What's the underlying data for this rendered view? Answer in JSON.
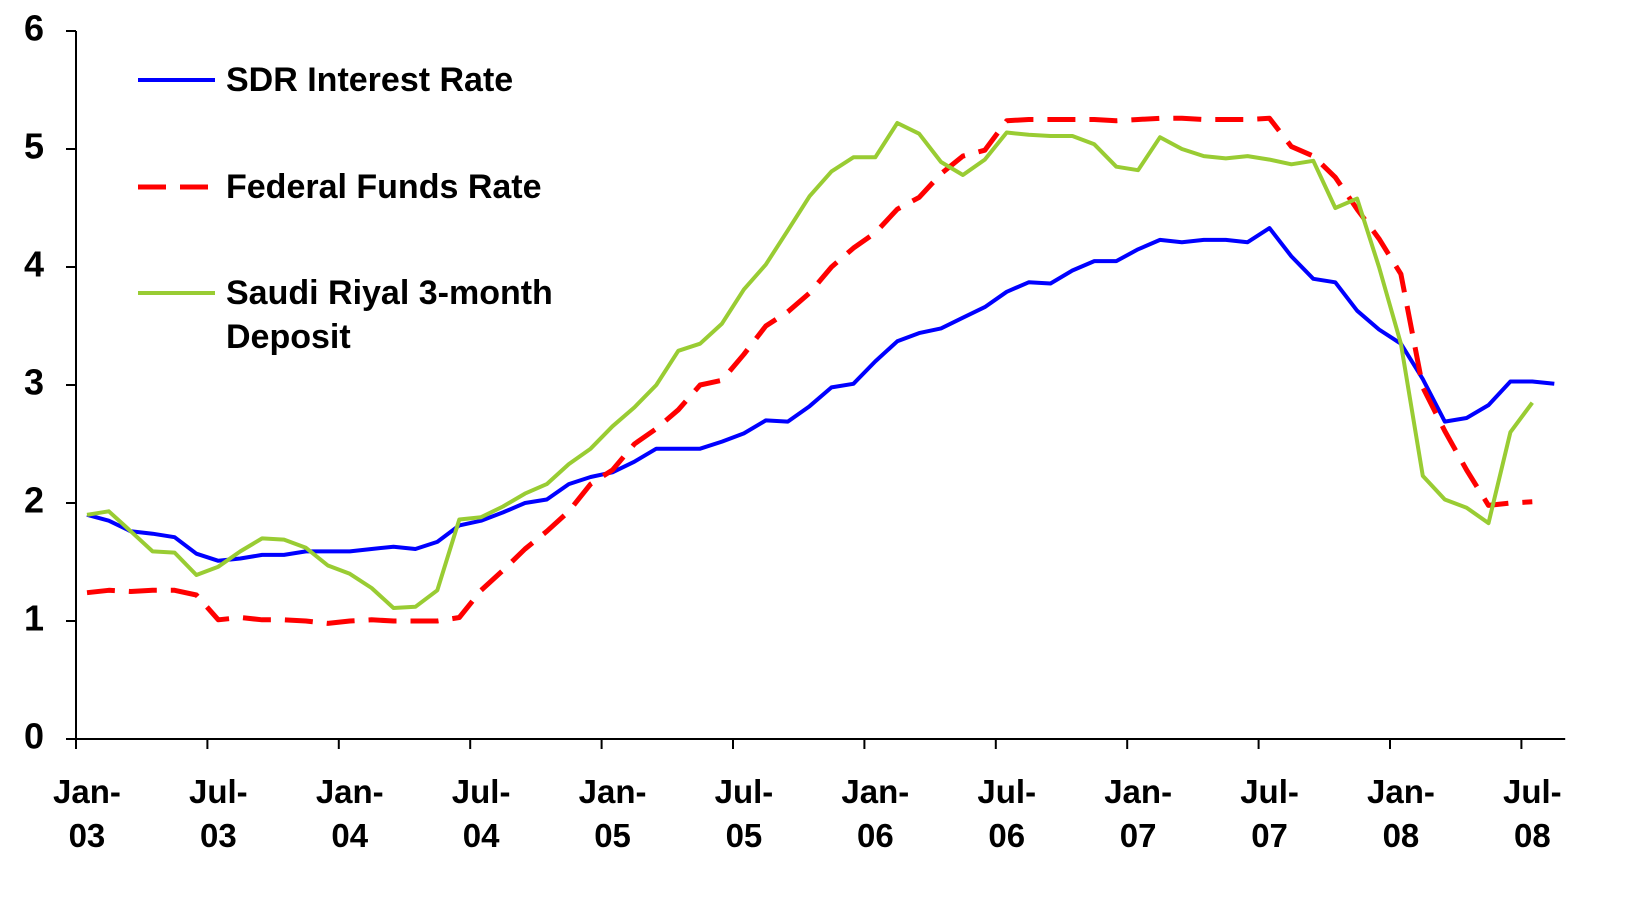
{
  "chart_data": {
    "type": "line",
    "categories": [
      "Jan-03",
      null,
      null,
      null,
      null,
      null,
      "Jul-03",
      null,
      null,
      null,
      null,
      null,
      "Jan-04",
      null,
      null,
      null,
      null,
      null,
      "Jul-04",
      null,
      null,
      null,
      null,
      null,
      "Jan-05",
      null,
      null,
      null,
      null,
      null,
      "Jul-05",
      null,
      null,
      null,
      null,
      null,
      "Jan-06",
      null,
      null,
      null,
      null,
      null,
      "Jul-06",
      null,
      null,
      null,
      null,
      null,
      "Jan-07",
      null,
      null,
      null,
      null,
      null,
      "Jul-07",
      null,
      null,
      null,
      null,
      null,
      "Jan-08",
      null,
      null,
      null,
      null,
      null,
      "Jul-08",
      null
    ],
    "series": [
      {
        "name": "SDR Interest Rate",
        "color": "#0000ff",
        "values": [
          1.9,
          1.85,
          1.76,
          1.74,
          1.71,
          1.57,
          1.51,
          1.53,
          1.56,
          1.56,
          1.59,
          1.59,
          1.59,
          1.61,
          1.63,
          1.61,
          1.67,
          1.81,
          1.85,
          1.92,
          2.0,
          2.03,
          2.16,
          2.22,
          2.26,
          2.35,
          2.46,
          2.46,
          2.46,
          2.52,
          2.59,
          2.7,
          2.69,
          2.82,
          2.98,
          3.01,
          3.2,
          3.37,
          3.44,
          3.48,
          3.57,
          3.66,
          3.79,
          3.87,
          3.86,
          3.97,
          4.05,
          4.05,
          4.15,
          4.23,
          4.21,
          4.23,
          4.23,
          4.21,
          4.33,
          4.09,
          3.9,
          3.87,
          3.63,
          3.47,
          3.35,
          3.05,
          2.69,
          2.72,
          2.83,
          3.03,
          3.03,
          3.01
        ]
      },
      {
        "name": "Federal Funds Rate",
        "color": "#ff0000",
        "dashed": true,
        "values": [
          1.24,
          1.26,
          1.25,
          1.26,
          1.26,
          1.22,
          1.01,
          1.03,
          1.01,
          1.01,
          1.0,
          0.98,
          1.0,
          1.01,
          1.0,
          1.0,
          1.0,
          1.03,
          1.26,
          1.43,
          1.61,
          1.76,
          1.93,
          2.16,
          2.28,
          2.5,
          2.63,
          2.79,
          3.0,
          3.04,
          3.26,
          3.5,
          3.62,
          3.78,
          4.0,
          4.16,
          4.29,
          4.49,
          4.59,
          4.79,
          4.94,
          4.99,
          5.24,
          5.25,
          5.25,
          5.25,
          5.25,
          5.24,
          5.25,
          5.26,
          5.26,
          5.25,
          5.25,
          5.25,
          5.26,
          5.02,
          4.94,
          4.76,
          4.49,
          4.24,
          3.94,
          2.98,
          2.61,
          2.28,
          1.98,
          2.0,
          2.01,
          null
        ]
      },
      {
        "name": "Saudi Riyal 3-month Deposit",
        "color": "#99cc33",
        "values": [
          1.9,
          1.93,
          1.76,
          1.59,
          1.58,
          1.39,
          1.46,
          1.59,
          1.7,
          1.69,
          1.62,
          1.47,
          1.4,
          1.28,
          1.11,
          1.12,
          1.26,
          1.86,
          1.88,
          1.97,
          2.08,
          2.16,
          2.33,
          2.46,
          2.65,
          2.81,
          3.0,
          3.29,
          3.35,
          3.52,
          3.81,
          4.02,
          4.31,
          4.6,
          4.81,
          4.93,
          4.93,
          5.22,
          5.13,
          4.89,
          4.78,
          4.91,
          5.14,
          5.12,
          5.11,
          5.11,
          5.04,
          4.85,
          4.82,
          5.1,
          5.0,
          4.94,
          4.92,
          4.94,
          4.91,
          4.87,
          4.9,
          4.5,
          4.58,
          4.0,
          3.35,
          2.23,
          2.03,
          1.96,
          1.83,
          2.6,
          2.85,
          null
        ]
      }
    ],
    "ylim": [
      0,
      6
    ],
    "yticks": [
      0,
      1,
      2,
      3,
      4,
      5,
      6
    ],
    "grid": false
  }
}
